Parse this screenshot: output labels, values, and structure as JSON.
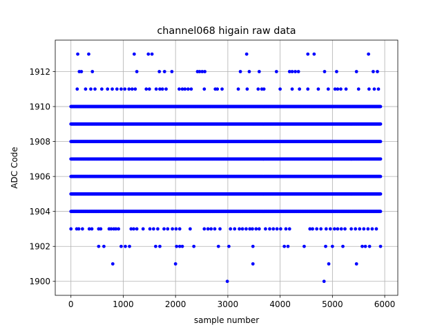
{
  "chart_data": {
    "type": "scatter",
    "title": "channel068 higain raw data",
    "xlabel": "sample number",
    "ylabel": "ADC Code",
    "xlim": [
      -300,
      6250
    ],
    "ylim": [
      1899.2,
      1913.8
    ],
    "xticks": [
      0,
      1000,
      2000,
      3000,
      4000,
      5000,
      6000
    ],
    "xtick_labels": [
      "0",
      "1000",
      "2000",
      "3000",
      "4000",
      "5000",
      "6000"
    ],
    "yticks": [
      1900,
      1902,
      1904,
      1906,
      1908,
      1910,
      1912
    ],
    "ytick_labels": [
      "1900",
      "1902",
      "1904",
      "1906",
      "1908",
      "1910",
      "1912"
    ],
    "grid": true,
    "marker_color": "#0000ff",
    "dense_levels": [
      {
        "y": 1904,
        "x_range": [
          0,
          5920
        ]
      },
      {
        "y": 1905,
        "x_range": [
          0,
          5920
        ]
      },
      {
        "y": 1906,
        "x_range": [
          0,
          5920
        ]
      },
      {
        "y": 1907,
        "x_range": [
          0,
          5920
        ]
      },
      {
        "y": 1908,
        "x_range": [
          0,
          5920
        ]
      },
      {
        "y": 1909,
        "x_range": [
          0,
          5920
        ]
      },
      {
        "y": 1910,
        "x_range": [
          0,
          5920
        ]
      }
    ],
    "sparse_points": [
      {
        "y": 1913,
        "x": [
          130,
          340,
          1210,
          1480,
          1550,
          3360,
          4530,
          4650,
          5690
        ]
      },
      {
        "y": 1912,
        "x": [
          160,
          200,
          410,
          1260,
          1690,
          1790,
          1930,
          2420,
          2460,
          2510,
          2560,
          3240,
          3410,
          3600,
          3930,
          4180,
          4230,
          4290,
          4350,
          4850,
          5080,
          5460,
          5780,
          5860
        ]
      },
      {
        "y": 1911,
        "x": [
          120,
          280,
          380,
          460,
          590,
          700,
          790,
          880,
          960,
          1030,
          1110,
          1170,
          1230,
          1440,
          1500,
          1630,
          1700,
          1750,
          1820,
          2070,
          2130,
          2180,
          2240,
          2300,
          2550,
          2760,
          2800,
          2890,
          3200,
          3370,
          3580,
          3650,
          3690,
          4000,
          4230,
          4370,
          4530,
          4730,
          4920,
          5050,
          5100,
          5160,
          5260,
          5500,
          5700,
          5800,
          5880
        ]
      },
      {
        "y": 1903,
        "x": [
          0,
          110,
          150,
          220,
          350,
          400,
          530,
          570,
          730,
          770,
          820,
          860,
          910,
          1150,
          1200,
          1260,
          1380,
          1510,
          1580,
          1660,
          1780,
          1850,
          1940,
          2010,
          2080,
          2280,
          2550,
          2620,
          2680,
          2750,
          2850,
          3050,
          3130,
          3220,
          3280,
          3350,
          3420,
          3470,
          3540,
          3600,
          3720,
          3800,
          3870,
          3940,
          4010,
          4110,
          4180,
          4570,
          4620,
          4700,
          4780,
          4880,
          4960,
          5040,
          5100,
          5170,
          5240,
          5360,
          5440,
          5520,
          5600,
          5680,
          5760,
          5840
        ]
      },
      {
        "y": 1902,
        "x": [
          530,
          630,
          960,
          1040,
          1120,
          1620,
          1700,
          2020,
          2080,
          2130,
          2350,
          2820,
          3020,
          3480,
          4080,
          4150,
          4460,
          4870,
          5000,
          5200,
          5570,
          5630,
          5710,
          5920
        ]
      },
      {
        "y": 1901,
        "x": [
          800,
          2000,
          3480,
          4930,
          5460
        ]
      },
      {
        "y": 1900,
        "x": [
          2990,
          4840
        ]
      }
    ]
  }
}
